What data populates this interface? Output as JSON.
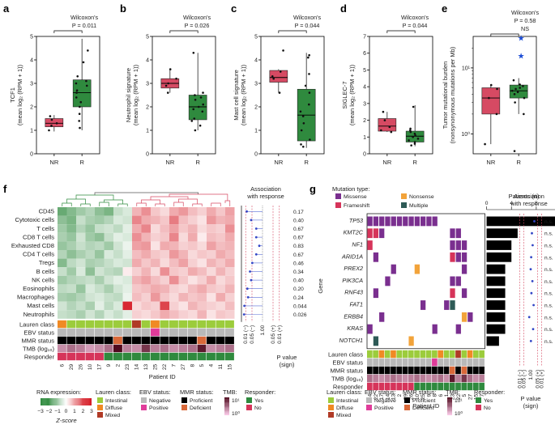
{
  "colors": {
    "nr": "#d64a63",
    "r": "#2f8a3e",
    "missense": "#7a2f8f",
    "frameshift": "#d6345a",
    "nonsense": "#f2a33a",
    "multiple": "#2e5a56",
    "lauren_intestinal": "#9ccc3c",
    "lauren_diffuse": "#f08a24",
    "lauren_mixed": "#b03a26",
    "ebv_negative": "#b9b9b9",
    "ebv_positive": "#e03c9a",
    "mmr_proficient": "#000000",
    "mmr_deficient": "#d9693a",
    "resp_yes": "#2f8a3e",
    "resp_no": "#d6345a",
    "bar": "#000000"
  },
  "panels": {
    "a": {
      "letter": "a",
      "test": "Wilcoxon's",
      "p": "P = 0.011"
    },
    "b": {
      "letter": "b",
      "test": "Wilcoxon's",
      "p": "P = 0.026"
    },
    "c": {
      "letter": "c",
      "test": "Wilcoxon's",
      "p": "P = 0.044"
    },
    "d": {
      "letter": "d",
      "test": "Wilcoxon's",
      "p": "P = 0.044"
    },
    "e": {
      "letter": "e",
      "test": "Wilcoxon's",
      "p": "P = 0.58",
      "ns": "NS"
    },
    "f": {
      "letter": "f"
    },
    "g": {
      "letter": "g"
    }
  },
  "chart_data": [
    {
      "id": "a",
      "type": "box",
      "ylabel": "TCF1\n(mean log₂ (RPM + 1))",
      "categories": [
        "NR",
        "R"
      ],
      "ylim": [
        0,
        5
      ],
      "yticks": [
        "0",
        "1",
        "2",
        "3",
        "4",
        "5"
      ],
      "boxes": [
        {
          "q1": 1.15,
          "median": 1.3,
          "q3": 1.5,
          "low": 0.95,
          "high": 1.65,
          "points": [
            1.0,
            1.2,
            1.3,
            1.45,
            1.6
          ]
        },
        {
          "q1": 2.0,
          "median": 2.6,
          "q3": 3.15,
          "low": 1.0,
          "high": 4.9,
          "points": [
            1.1,
            1.4,
            1.7,
            2.0,
            2.2,
            2.4,
            2.6,
            2.7,
            2.9,
            3.0,
            3.1,
            3.3,
            3.9,
            4.4
          ]
        }
      ]
    },
    {
      "id": "b",
      "type": "box",
      "ylabel": "Neutrophil signature\n(mean log₂ (RPM + 1))",
      "categories": [
        "NR",
        "R"
      ],
      "ylim": [
        0,
        5
      ],
      "yticks": [
        "0",
        "1",
        "2",
        "3",
        "4",
        "5"
      ],
      "boxes": [
        {
          "q1": 2.8,
          "median": 3.0,
          "q3": 3.2,
          "low": 2.6,
          "high": 3.6,
          "points": [
            2.6,
            2.9,
            3.0,
            3.2,
            3.6
          ]
        },
        {
          "q1": 1.45,
          "median": 2.0,
          "q3": 2.5,
          "low": 1.0,
          "high": 4.3,
          "points": [
            1.0,
            1.2,
            1.4,
            1.5,
            1.8,
            1.9,
            2.0,
            2.1,
            2.3,
            2.4,
            2.5,
            2.6,
            4.3
          ]
        }
      ]
    },
    {
      "id": "c",
      "type": "box",
      "ylabel": "Mast cell signature\n(mean log₂ (RPM + 1))",
      "categories": [
        "NR",
        "R"
      ],
      "ylim": [
        0,
        5
      ],
      "yticks": [
        "0",
        "1",
        "2",
        "3",
        "4",
        "5"
      ],
      "boxes": [
        {
          "q1": 3.05,
          "median": 3.25,
          "q3": 3.55,
          "low": 2.6,
          "high": 3.6,
          "points": [
            2.6,
            3.2,
            3.3,
            3.5,
            4.4
          ]
        },
        {
          "q1": 0.55,
          "median": 1.65,
          "q3": 2.75,
          "low": 0.25,
          "high": 4.3,
          "points": [
            0.3,
            0.4,
            0.6,
            1.0,
            1.3,
            1.6,
            1.8,
            2.1,
            2.6,
            2.9,
            3.4,
            4.1,
            4.2
          ]
        }
      ]
    },
    {
      "id": "d",
      "type": "box",
      "ylabel": "SIGLEC-7\n(mean log₂ (RPM + 1))",
      "categories": [
        "NR",
        "R"
      ],
      "ylim": [
        0,
        7
      ],
      "yticks": [
        "0",
        "1",
        "2",
        "3",
        "4",
        "5",
        "6",
        "7"
      ],
      "boxes": [
        {
          "q1": 1.35,
          "median": 1.65,
          "q3": 2.1,
          "low": 1.3,
          "high": 2.5,
          "points": [
            1.3,
            1.4,
            1.6,
            2.0,
            2.5
          ]
        },
        {
          "q1": 0.7,
          "median": 1.05,
          "q3": 1.35,
          "low": 0.45,
          "high": 2.9,
          "points": [
            0.5,
            0.6,
            0.7,
            0.8,
            0.9,
            1.0,
            1.1,
            1.2,
            1.3,
            1.4,
            1.5,
            2.8
          ]
        }
      ]
    },
    {
      "id": "e",
      "type": "box",
      "ylabel": "Tumor mutational burden\n(nonsynonymous mutations per Mb)",
      "categories": [
        "NR",
        "R"
      ],
      "scale": "log",
      "ylim": [
        0.5,
        30
      ],
      "yticks": [
        "10⁰",
        "10¹"
      ],
      "boxes": [
        {
          "q1": 2.0,
          "median": 3.5,
          "q3": 5.0,
          "low": 0.7,
          "high": 5.5,
          "points": [
            0.7,
            2.0,
            3.5,
            4.8,
            5.5
          ]
        },
        {
          "q1": 3.5,
          "median": 4.5,
          "q3": 5.5,
          "low": 2.0,
          "high": 7.0,
          "points": [
            0.55,
            2.0,
            3.0,
            3.5,
            4.0,
            4.3,
            4.5,
            4.8,
            5.0,
            5.3,
            5.6,
            6.5
          ]
        },
        {
          "outliers": [
            15.0,
            28.0
          ]
        }
      ]
    },
    {
      "id": "f",
      "type": "heatmap",
      "title_colorbar": "RNA expression:",
      "colorbar_ticks": [
        "−3",
        "−2",
        "−1",
        "0",
        "1",
        "2",
        "3"
      ],
      "colorbar_label": "Z-score",
      "xlabel": "Patient ID",
      "patients": [
        "6",
        "29",
        "26",
        "10",
        "17",
        "9",
        "2",
        "23",
        "14",
        "13",
        "25",
        "22",
        "7",
        "27",
        "8",
        "5",
        "4",
        "11",
        "15"
      ],
      "rows": [
        "CD45",
        "Cytotoxic cells",
        "T cells",
        "CD8 T cells",
        "Exhausted CD8",
        "CD4 T cells",
        "Tregs",
        "B cells",
        "NK cells",
        "Eosinophils",
        "Macrophages",
        "Mast cells",
        "Neutrophils"
      ],
      "annotation_rows": [
        "Lauren class",
        "EBV status",
        "MMR status",
        "TMB (log₁₀)",
        "Responder"
      ],
      "association_title": "Association\nwith response",
      "assoc_values": [
        "0.17",
        "0.40",
        "0.67",
        "0.67",
        "0.83",
        "0.67",
        "0.46",
        "0.34",
        "0.40",
        "0.20",
        "0.24",
        "0.044",
        "0.026"
      ],
      "assoc_ticks": [
        "0.01 (−)",
        "0.05 (−)",
        "1.00",
        "0.05 (+)",
        "0.01 (+)"
      ],
      "assoc_xlabel": "P value\n(sign)",
      "matrix": [
        [
          -1.6,
          -1.3,
          -1.0,
          -0.8,
          -1.2,
          -1.4,
          -0.6,
          -0.4,
          0.8,
          1.2,
          0.6,
          0.4,
          0.9,
          1.1,
          0.7,
          0.5,
          0.9,
          0.6,
          1.0
        ],
        [
          -1.2,
          -1.4,
          -0.6,
          -0.9,
          -1.0,
          -0.8,
          -0.4,
          -0.5,
          1.3,
          0.9,
          0.8,
          0.6,
          1.4,
          0.7,
          0.5,
          0.3,
          1.1,
          0.8,
          0.9
        ],
        [
          -1.0,
          -1.3,
          -0.8,
          -1.1,
          -0.6,
          -0.5,
          -0.7,
          -0.3,
          0.9,
          1.3,
          0.4,
          0.7,
          1.0,
          0.6,
          0.8,
          0.4,
          0.6,
          0.5,
          1.2
        ],
        [
          -0.9,
          -1.1,
          -0.5,
          -1.0,
          -1.2,
          -0.6,
          -0.3,
          -0.4,
          1.2,
          0.8,
          0.5,
          0.6,
          1.3,
          0.4,
          0.9,
          0.2,
          0.7,
          0.6,
          0.9
        ],
        [
          -1.1,
          -0.9,
          -0.6,
          -0.8,
          -0.7,
          -1.0,
          -0.5,
          -0.2,
          1.0,
          1.1,
          0.3,
          0.9,
          0.8,
          0.5,
          0.6,
          0.4,
          1.0,
          0.7,
          0.8
        ],
        [
          -0.8,
          -1.2,
          -0.9,
          -0.7,
          -1.1,
          -0.4,
          -0.6,
          -0.3,
          0.7,
          0.9,
          0.6,
          0.5,
          1.1,
          0.8,
          0.4,
          0.6,
          0.5,
          0.9,
          0.7
        ],
        [
          -1.3,
          -0.7,
          -0.5,
          -0.9,
          -0.8,
          -0.6,
          -0.4,
          -0.5,
          0.9,
          0.6,
          0.8,
          0.4,
          0.7,
          1.0,
          0.5,
          0.3,
          0.8,
          0.6,
          0.9
        ],
        [
          -0.6,
          -1.0,
          -0.4,
          -1.2,
          -0.5,
          -0.7,
          -0.8,
          0.2,
          0.5,
          0.8,
          0.4,
          1.2,
          0.6,
          0.5,
          0.9,
          0.7,
          0.4,
          0.8,
          0.5
        ],
        [
          -1.0,
          -0.8,
          -0.7,
          -0.6,
          -0.9,
          -0.5,
          -0.3,
          -0.4,
          0.8,
          1.0,
          0.7,
          0.5,
          1.2,
          0.6,
          0.3,
          0.5,
          0.9,
          0.4,
          0.6
        ],
        [
          -0.7,
          -0.6,
          -1.1,
          -0.4,
          -0.6,
          -0.9,
          -0.5,
          -0.3,
          0.6,
          0.7,
          0.9,
          0.8,
          0.5,
          0.4,
          0.7,
          0.9,
          0.6,
          0.5,
          0.8
        ],
        [
          -0.9,
          -1.0,
          -0.8,
          -0.5,
          -0.4,
          -0.6,
          -0.7,
          -0.2,
          0.7,
          0.5,
          1.1,
          0.6,
          0.4,
          0.8,
          0.6,
          0.7,
          0.3,
          0.9,
          0.5
        ],
        [
          -0.5,
          -0.8,
          -0.6,
          -0.9,
          -0.3,
          -0.7,
          -0.4,
          2.3,
          0.4,
          0.6,
          0.5,
          2.0,
          0.5,
          0.3,
          0.8,
          0.6,
          0.5,
          0.4,
          0.7
        ],
        [
          -0.6,
          -0.7,
          -0.9,
          -0.5,
          -0.8,
          -0.4,
          -0.6,
          -0.3,
          0.5,
          0.4,
          0.6,
          0.9,
          0.7,
          0.5,
          0.4,
          0.8,
          0.3,
          0.6,
          0.5
        ]
      ],
      "annot": {
        "lauren": [
          "diffuse",
          "intestinal",
          "intestinal",
          "intestinal",
          "intestinal",
          "intestinal",
          "intestinal",
          "intestinal",
          "mixed",
          "intestinal",
          "diffuse",
          "intestinal",
          "intestinal",
          "intestinal",
          "intestinal",
          "intestinal",
          "intestinal",
          "intestinal",
          "intestinal"
        ],
        "ebv": [
          "negative",
          "negative",
          "negative",
          "negative",
          "negative",
          "negative",
          "negative",
          "negative",
          "negative",
          "negative",
          "positive",
          "negative",
          "negative",
          "negative",
          "negative",
          "negative",
          "negative",
          "negative",
          "negative"
        ],
        "mmr": [
          "proficient",
          "proficient",
          "proficient",
          "proficient",
          "proficient",
          "proficient",
          "deficient",
          "proficient",
          "proficient",
          "proficient",
          "proficient",
          "proficient",
          "proficient",
          "proficient",
          "proficient",
          "deficient",
          "proficient",
          "proficient",
          "proficient"
        ],
        "tmb": [
          0.4,
          0.6,
          0.5,
          0.3,
          0.4,
          0.6,
          1.3,
          0.5,
          0.4,
          1.0,
          0.5,
          0.6,
          0.4,
          0.5,
          0.6,
          1.2,
          0.4,
          0.5,
          0.6
        ],
        "responder": [
          "no",
          "no",
          "no",
          "no",
          "no",
          "yes",
          "yes",
          "yes",
          "yes",
          "yes",
          "yes",
          "yes",
          "yes",
          "yes",
          "yes",
          "yes",
          "yes",
          "yes",
          "yes"
        ]
      }
    },
    {
      "id": "g",
      "type": "oncoprint",
      "legend_title": "Mutation type:",
      "mutation_types": [
        "Missense",
        "Nonsense",
        "Frameshift",
        "Multiple"
      ],
      "genes": [
        "TP53",
        "KMT2C",
        "NF1",
        "ARID1A",
        "PREX2",
        "PIK3CA",
        "RNF43",
        "FAT1",
        "ERBB4",
        "KRAS",
        "NOTCH1"
      ],
      "ylabel": "Gene",
      "xlabel": "Patient ID",
      "patients": [
        "4",
        "22",
        "17",
        "14",
        "13",
        "2",
        "29",
        "26",
        "10",
        "25",
        "9",
        "8",
        "6",
        "1",
        "23",
        "22",
        "5",
        "27",
        "15",
        "7"
      ],
      "patients_title": "Patients (n)",
      "patients_ticks": [
        "0",
        "4",
        "8",
        "12"
      ],
      "patients_n": [
        12,
        5,
        4,
        4,
        3,
        3,
        3,
        3,
        3,
        3,
        2
      ],
      "association_title": "Association\nwith response",
      "assoc_ticks": [
        "0.01 (−)",
        "0.05 (−)",
        "1.00",
        "0.05 (+)",
        "0.01 (+)"
      ],
      "assoc_values": [
        "n.s.",
        "n.s.",
        "n.s.",
        "n.s.",
        "n.s.",
        "n.s.",
        "n.s.",
        "n.s.",
        "n.s.",
        "n.s.",
        "n.s."
      ],
      "assoc_xlabel": "P value\n(sign)",
      "annotation_rows": [
        "Lauren class",
        "EBV status",
        "MMR status",
        "TMB (log₁₀)",
        "Responder"
      ],
      "mutations": {
        "TP53": {
          "0": "missense",
          "1": "missense",
          "2": "missense",
          "3": "missense",
          "4": "missense",
          "5": "missense",
          "6": "missense",
          "7": "missense",
          "8": "missense",
          "9": "missense",
          "10": "missense",
          "11": "missense"
        },
        "KMT2C": {
          "0": "frameshift",
          "1": "frameshift",
          "2": "missense",
          "14": "missense",
          "15": "missense"
        },
        "NF1": {
          "0": "frameshift",
          "14": "missense",
          "15": "missense",
          "16": "missense"
        },
        "ARID1A": {
          "1": "missense",
          "14": "frameshift",
          "15": "missense",
          "16": "missense"
        },
        "PREX2": {
          "4": "missense",
          "8": "nonsense",
          "16": "missense"
        },
        "PIK3CA": {
          "3": "missense",
          "14": "missense",
          "15": "missense"
        },
        "RNF43": {
          "1": "missense",
          "14": "frameshift",
          "16": "missense"
        },
        "FAT1": {
          "9": "missense",
          "13": "missense",
          "14": "multiple"
        },
        "ERBB4": {
          "2": "missense",
          "16": "nonsense",
          "17": "missense"
        },
        "KRAS": {
          "0": "missense",
          "11": "missense",
          "15": "missense"
        },
        "NOTCH1": {
          "1": "multiple",
          "7": "nonsense"
        }
      },
      "annot": {
        "lauren": [
          "intestinal",
          "intestinal",
          "diffuse",
          "intestinal",
          "diffuse",
          "intestinal",
          "intestinal",
          "intestinal",
          "intestinal",
          "intestinal",
          "intestinal",
          "intestinal",
          "diffuse",
          "intestinal",
          "intestinal",
          "mixed",
          "intestinal",
          "diffuse",
          "intestinal",
          "intestinal"
        ],
        "ebv": [
          "negative",
          "negative",
          "negative",
          "negative",
          "negative",
          "negative",
          "negative",
          "negative",
          "negative",
          "negative",
          "negative",
          "positive",
          "negative",
          "negative",
          "negative",
          "negative",
          "negative",
          "negative",
          "negative",
          "negative"
        ],
        "mmr": [
          "proficient",
          "proficient",
          "proficient",
          "proficient",
          "proficient",
          "proficient",
          "proficient",
          "proficient",
          "proficient",
          "proficient",
          "proficient",
          "proficient",
          "proficient",
          "proficient",
          "deficient",
          "proficient",
          "deficient",
          "proficient",
          "proficient",
          "proficient"
        ],
        "tmb": [
          0.6,
          0.5,
          0.4,
          0.5,
          0.6,
          0.5,
          0.4,
          0.5,
          0.6,
          0.5,
          0.4,
          0.5,
          0.6,
          0.4,
          1.2,
          0.5,
          1.0,
          0.6,
          0.4,
          0.5
        ],
        "responder": [
          "no",
          "no",
          "no",
          "no",
          "no",
          "no",
          "no",
          "no",
          "yes",
          "yes",
          "yes",
          "yes",
          "yes",
          "yes",
          "yes",
          "yes",
          "yes",
          "yes",
          "yes",
          "yes"
        ]
      }
    }
  ],
  "legends": {
    "rna": {
      "title": "RNA expression:"
    },
    "lauren": {
      "title": "Lauren class:",
      "items": [
        "Intestinal",
        "Diffuse",
        "Mixed"
      ]
    },
    "ebv": {
      "title": "EBV status:",
      "items": [
        "Negative",
        "Positive"
      ]
    },
    "mmr": {
      "title": "MMR status:",
      "items": [
        "Proficient",
        "Deficient"
      ]
    },
    "tmb": {
      "title": "TMB:",
      "ticks": [
        "10¹",
        "10⁰"
      ]
    },
    "responder": {
      "title": "Responder:",
      "items": [
        "Yes",
        "No"
      ]
    }
  }
}
